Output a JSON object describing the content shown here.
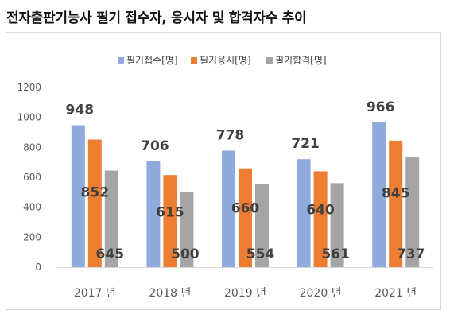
{
  "page": {
    "title": "전자출판기능사 필기 접수자, 응시자 및 합격자수 추이"
  },
  "chart_data": {
    "type": "bar",
    "categories": [
      "2017 년",
      "2018 년",
      "2019 년",
      "2020 년",
      "2021 년"
    ],
    "series": [
      {
        "name": "필기접수[명]",
        "color": "#8FAADC",
        "values": [
          948,
          706,
          778,
          721,
          966
        ]
      },
      {
        "name": "필기응시[명]",
        "color": "#ED7D31",
        "values": [
          852,
          615,
          660,
          640,
          845
        ]
      },
      {
        "name": "필기합격[명]",
        "color": "#A5A5A5",
        "values": [
          645,
          500,
          554,
          561,
          737
        ]
      }
    ],
    "ylim": [
      0,
      1200
    ],
    "yticks": [
      "0",
      "200",
      "400",
      "600",
      "800",
      "1000",
      "1200"
    ],
    "grid": false,
    "legend": "top-center",
    "data_labels": true
  }
}
